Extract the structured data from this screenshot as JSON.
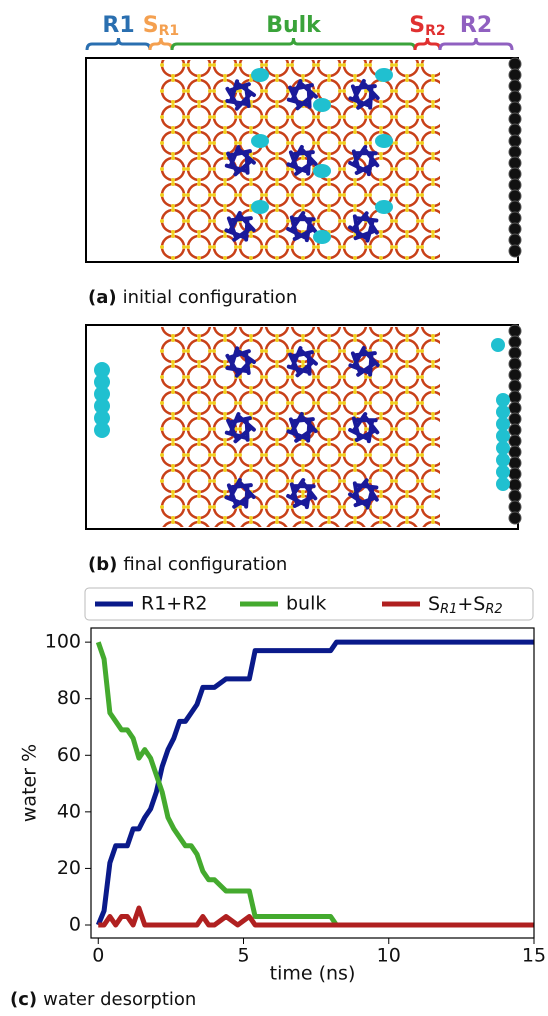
{
  "figure": {
    "regions": [
      {
        "main": "R1",
        "color": "#2a6fb0"
      },
      {
        "main": "S",
        "sub": "R1",
        "color": "#f4a050"
      },
      {
        "main": "Bulk",
        "color": "#3aa33a"
      },
      {
        "main": "S",
        "sub": "R2",
        "color": "#e03030"
      },
      {
        "main": "R2",
        "color": "#9060c0"
      }
    ],
    "captions": [
      {
        "label": "(a)",
        "text": "initial configuration"
      },
      {
        "label": "(b)",
        "text": "final configuration"
      },
      {
        "label": "(c)",
        "text": "water desorption"
      }
    ]
  },
  "chart_data": {
    "type": "line",
    "xlabel": "time (ns)",
    "ylabel": "water %",
    "x": [
      0,
      0.2,
      0.4,
      0.6,
      0.8,
      1.0,
      1.2,
      1.4,
      1.6,
      1.8,
      2.0,
      2.2,
      2.4,
      2.6,
      2.8,
      3.0,
      3.2,
      3.4,
      3.6,
      3.8,
      4.0,
      4.4,
      4.8,
      5.2,
      5.4,
      6,
      7,
      8,
      8.2,
      9,
      10,
      12,
      15
    ],
    "series": [
      {
        "name": "R1+R2",
        "color": "#0a1a8a",
        "values": [
          0,
          5,
          22,
          28,
          28,
          28,
          34,
          34,
          38,
          41,
          47,
          56,
          62,
          66,
          72,
          72,
          75,
          78,
          84,
          84,
          84,
          87,
          87,
          87,
          97,
          97,
          97,
          97,
          100,
          100,
          100,
          100,
          100
        ]
      },
      {
        "name": "bulk",
        "color": "#44aa2e",
        "values": [
          100,
          94,
          75,
          72,
          69,
          69,
          66,
          59,
          62,
          59,
          53,
          47,
          38,
          34,
          31,
          28,
          28,
          25,
          19,
          16,
          16,
          12,
          12,
          12,
          3,
          3,
          3,
          3,
          0,
          0,
          0,
          0,
          0
        ]
      },
      {
        "name": "S_{R1}+S_{R2}",
        "color": "#b02020",
        "values": [
          0,
          0,
          3,
          0,
          3,
          3,
          0,
          6,
          0,
          0,
          0,
          0,
          0,
          0,
          0,
          0,
          0,
          0,
          3,
          0,
          0,
          3,
          0,
          3,
          0,
          0,
          0,
          0,
          0,
          0,
          0,
          0,
          0
        ]
      }
    ],
    "xlim": [
      -0.25,
      15
    ],
    "ylim": [
      -4.6,
      105
    ],
    "xticks": [
      0,
      5,
      10,
      15
    ],
    "yticks": [
      0,
      20,
      40,
      60,
      80,
      100
    ]
  }
}
